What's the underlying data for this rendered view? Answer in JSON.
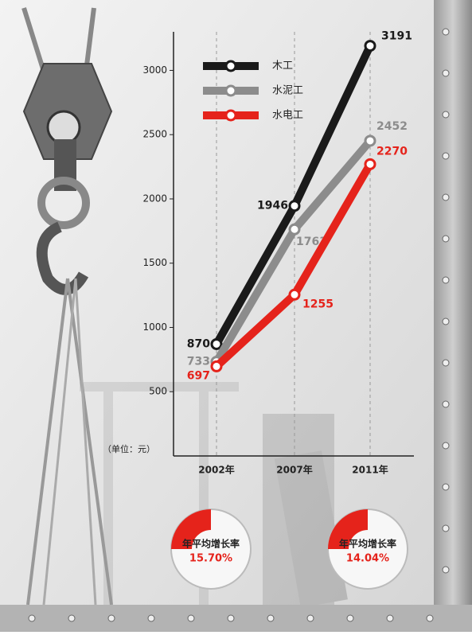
{
  "chart_data": {
    "type": "line",
    "categories": [
      "2002年",
      "2007年",
      "2011年"
    ],
    "series": [
      {
        "name": "木工",
        "color": "#1a1a1a",
        "values": [
          870,
          1946,
          3191
        ]
      },
      {
        "name": "水泥工",
        "color": "#8c8c8c",
        "values": [
          733,
          1763,
          2452
        ]
      },
      {
        "name": "水电工",
        "color": "#e5231b",
        "values": [
          697,
          1255,
          2270
        ]
      }
    ],
    "ylim": [
      0,
      3300
    ],
    "yticks": [
      500,
      1000,
      1500,
      2000,
      2500,
      3000
    ],
    "unit_label": "（单位：元）",
    "annotations": [
      {
        "text": "年平均增长率",
        "rate": "15.70%"
      },
      {
        "text": "年平均增长率",
        "rate": "14.04%"
      }
    ]
  }
}
